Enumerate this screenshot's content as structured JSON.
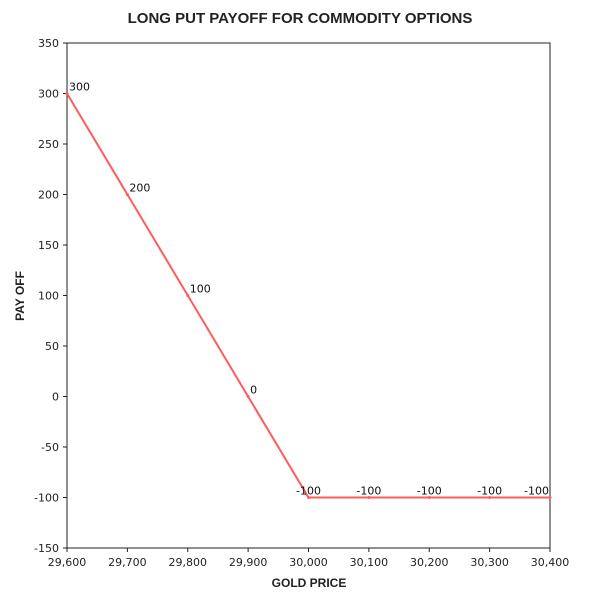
{
  "chart_data": {
    "type": "line",
    "title": "LONG PUT PAYOFF FOR COMMODITY OPTIONS",
    "xlabel": "GOLD PRICE",
    "ylabel": "PAY OFF",
    "x": [
      29600,
      29700,
      29800,
      29900,
      30000,
      30100,
      30200,
      30300,
      30400
    ],
    "x_tick_labels": [
      "29,600",
      "29,700",
      "29,800",
      "29,900",
      "30,000",
      "30,100",
      "30,200",
      "30,300",
      "30,400"
    ],
    "xlim": [
      29600,
      30400
    ],
    "ylim": [
      -150,
      350
    ],
    "y_ticks": [
      350,
      300,
      250,
      200,
      150,
      100,
      50,
      0,
      -50,
      -100,
      -150
    ],
    "y_tick_labels": [
      "350",
      "300",
      "250",
      "200",
      "150",
      "100",
      "50",
      "0",
      "-50",
      "-100",
      "-150"
    ],
    "series": [
      {
        "values": [
          300,
          200,
          100,
          0,
          -100,
          -100,
          -100,
          -100,
          -100
        ],
        "data_labels": [
          "300",
          "200",
          "100",
          "0",
          "-100",
          "-100",
          "-100",
          "-100",
          "-100"
        ],
        "color": "#ff5c5c"
      }
    ],
    "grid": false,
    "legend": false
  }
}
